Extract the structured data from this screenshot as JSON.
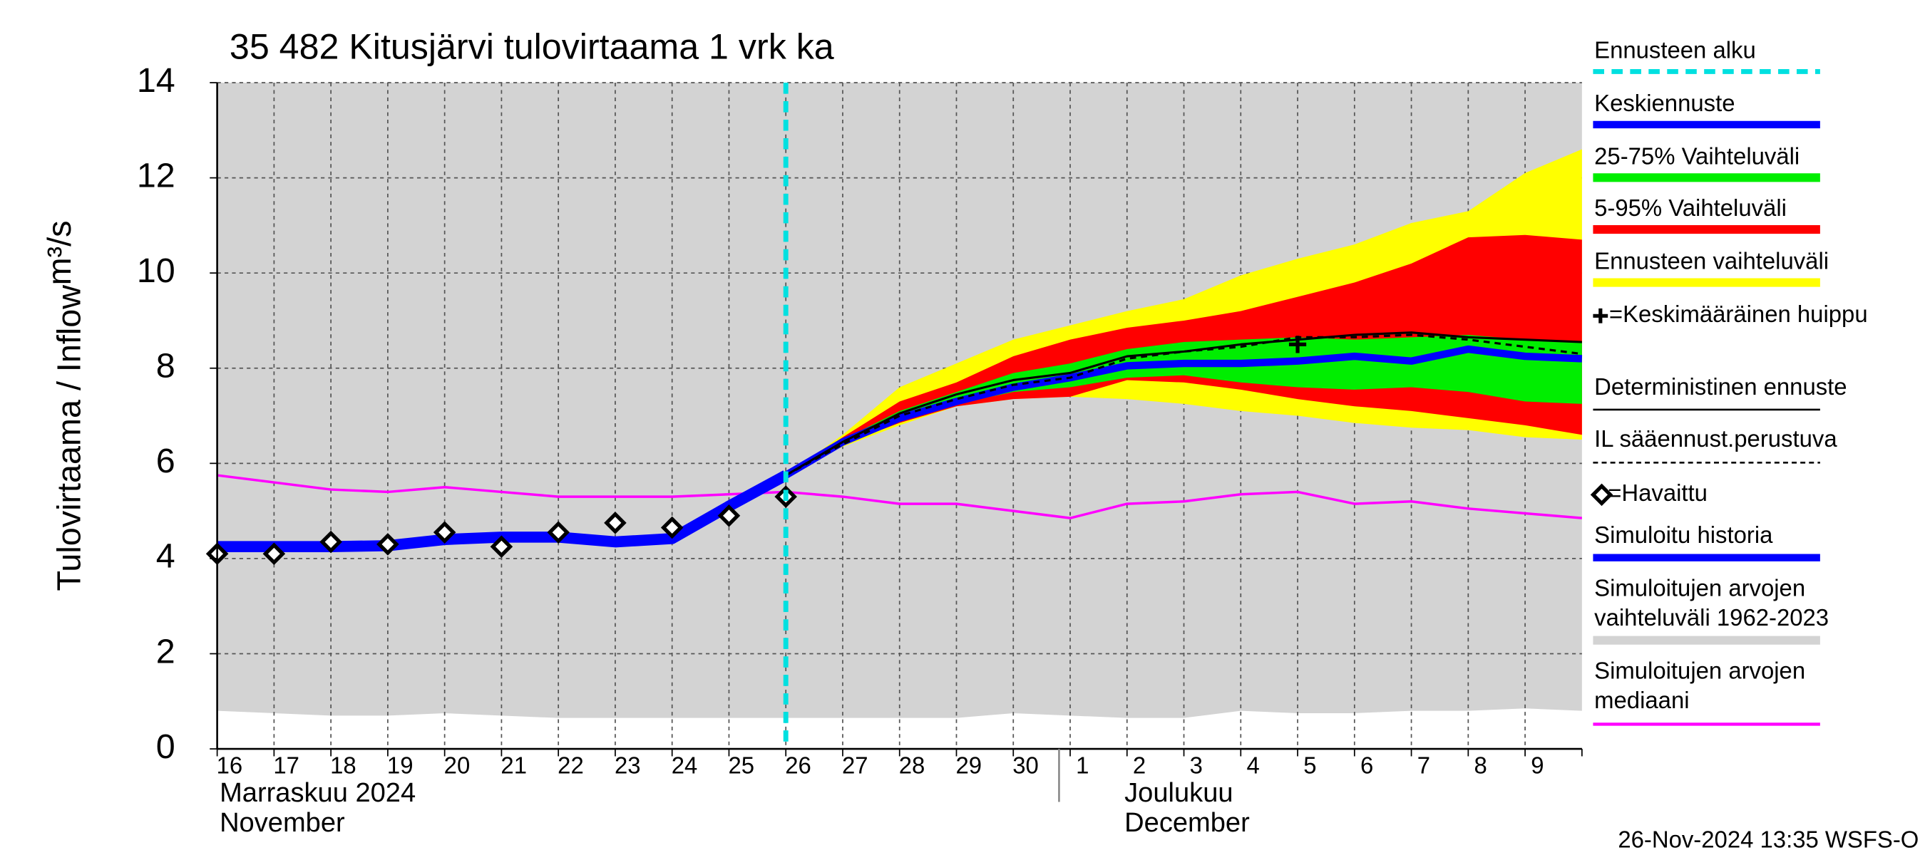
{
  "chart_data": {
    "type": "forecast-band",
    "title": "35 482 Kitusjärvi tulovirtaama 1 vrk ka",
    "ylabel": "Tulovirtaama / Inflow",
    "yunit": "m³/s",
    "categories": [
      "16",
      "17",
      "18",
      "19",
      "20",
      "21",
      "22",
      "23",
      "24",
      "25",
      "26",
      "27",
      "28",
      "29",
      "30",
      "1",
      "2",
      "3",
      "4",
      "5",
      "6",
      "7",
      "8",
      "9",
      null
    ],
    "months": [
      {
        "name": "Marraskuu 2024",
        "name_en": "November",
        "start": "16"
      },
      {
        "name": "Joulukuu",
        "name_en": "December",
        "start": "1"
      }
    ],
    "forecast_start": "26",
    "ylim": [
      0,
      14
    ],
    "yticks": [
      0,
      2,
      4,
      6,
      8,
      10,
      12,
      14
    ],
    "grid": true,
    "footer": "26-Nov-2024 13:35 WSFS-O",
    "series": [
      {
        "kind": "vline",
        "name": "Ennusteen alku",
        "color": "#00e0e0"
      },
      {
        "kind": "line",
        "name": "Keskiennuste",
        "color": "#0000ff",
        "values": [
          null,
          null,
          null,
          null,
          null,
          null,
          null,
          null,
          null,
          null,
          5.75,
          6.45,
          6.95,
          7.3,
          7.6,
          7.8,
          8.05,
          8.1,
          8.1,
          8.15,
          8.25,
          8.15,
          8.4,
          8.25,
          8.2
        ]
      },
      {
        "kind": "band",
        "name": "25-75% Vaihteluväli",
        "color": "#00ee00",
        "low": [
          null,
          null,
          null,
          null,
          null,
          null,
          null,
          null,
          null,
          null,
          5.75,
          6.42,
          6.9,
          7.25,
          7.5,
          7.6,
          7.8,
          7.85,
          7.7,
          7.6,
          7.55,
          7.6,
          7.5,
          7.3,
          7.25
        ],
        "high": [
          null,
          null,
          null,
          null,
          null,
          null,
          null,
          null,
          null,
          null,
          5.75,
          6.5,
          7.1,
          7.5,
          7.9,
          8.1,
          8.4,
          8.55,
          8.6,
          8.65,
          8.6,
          8.65,
          8.7,
          8.6,
          8.55
        ]
      },
      {
        "kind": "band",
        "name": "5-95% Vaihteluväli",
        "color": "#ff0000",
        "low": [
          null,
          null,
          null,
          null,
          null,
          null,
          null,
          null,
          null,
          null,
          5.75,
          6.4,
          6.85,
          7.2,
          7.35,
          7.4,
          7.75,
          7.7,
          7.55,
          7.35,
          7.2,
          7.1,
          6.95,
          6.8,
          6.6
        ],
        "high": [
          null,
          null,
          null,
          null,
          null,
          null,
          null,
          null,
          null,
          null,
          5.75,
          6.55,
          7.3,
          7.7,
          8.25,
          8.6,
          8.85,
          9.0,
          9.2,
          9.5,
          9.8,
          10.2,
          10.75,
          10.8,
          10.7
        ]
      },
      {
        "kind": "band",
        "name": "Ennusteen vaihteluväli",
        "color": "#ffff00",
        "low": [
          null,
          null,
          null,
          null,
          null,
          null,
          null,
          null,
          null,
          null,
          5.75,
          6.35,
          6.8,
          7.2,
          7.35,
          7.4,
          7.35,
          7.25,
          7.1,
          7.0,
          6.85,
          6.75,
          6.7,
          6.55,
          6.5
        ],
        "high": [
          null,
          null,
          null,
          null,
          null,
          null,
          null,
          null,
          null,
          null,
          5.75,
          6.6,
          7.6,
          8.1,
          8.6,
          8.9,
          9.2,
          9.45,
          9.95,
          10.3,
          10.6,
          11.05,
          11.3,
          12.1,
          12.6
        ]
      },
      {
        "kind": "peak",
        "name": "=Keskimääräinen huippu",
        "color": "#000000",
        "values": [
          null,
          null,
          null,
          null,
          null,
          null,
          null,
          null,
          null,
          null,
          null,
          null,
          null,
          null,
          null,
          null,
          null,
          null,
          null,
          8.5,
          null,
          null,
          null,
          null,
          null
        ]
      },
      {
        "kind": "line",
        "name": "Deterministinen ennuste",
        "color": "#000000",
        "values": [
          null,
          null,
          null,
          null,
          null,
          null,
          null,
          null,
          null,
          null,
          5.75,
          6.45,
          7.05,
          7.45,
          7.75,
          7.9,
          8.25,
          8.35,
          8.5,
          8.6,
          8.7,
          8.75,
          8.65,
          8.6,
          8.55
        ]
      },
      {
        "kind": "dashed",
        "name": "IL sääennust.perustuva",
        "color": "#000000",
        "values": [
          null,
          null,
          null,
          null,
          null,
          null,
          null,
          null,
          null,
          null,
          5.75,
          6.4,
          7.0,
          7.35,
          7.65,
          7.8,
          8.2,
          8.35,
          8.45,
          8.65,
          8.65,
          8.7,
          8.6,
          8.45,
          8.3
        ]
      },
      {
        "kind": "markers",
        "name": "=Havaittu",
        "color": "#000000",
        "values": [
          4.1,
          4.1,
          4.35,
          4.3,
          4.55,
          4.25,
          4.55,
          4.75,
          4.65,
          4.9,
          5.3,
          null,
          null,
          null,
          null,
          null,
          null,
          null,
          null,
          null,
          null,
          null,
          null,
          null,
          null
        ]
      },
      {
        "kind": "line",
        "name": "Simuloitu historia",
        "color": "#0000ff",
        "values": [
          4.25,
          4.25,
          4.25,
          4.27,
          4.4,
          4.45,
          4.45,
          4.35,
          4.42,
          5.1,
          5.75,
          null,
          null,
          null,
          null,
          null,
          null,
          null,
          null,
          null,
          null,
          null,
          null,
          null,
          null
        ]
      },
      {
        "kind": "band",
        "name": [
          "Simuloitujen arvojen",
          "vaihteluväli 1962-2023"
        ],
        "color": "#d3d3d3",
        "low": [
          0.8,
          0.75,
          0.7,
          0.7,
          0.75,
          0.7,
          0.65,
          0.65,
          0.65,
          0.65,
          0.65,
          0.65,
          0.65,
          0.65,
          0.75,
          0.7,
          0.65,
          0.65,
          0.8,
          0.75,
          0.75,
          0.8,
          0.8,
          0.85,
          0.8
        ],
        "high": [
          14,
          14,
          14,
          14,
          14,
          14,
          14,
          14,
          14,
          14,
          14,
          14,
          14,
          14,
          14,
          14,
          14,
          14,
          14,
          14,
          14,
          14,
          14,
          14,
          14
        ]
      },
      {
        "kind": "line",
        "name": [
          "Simuloitujen arvojen",
          "mediaani"
        ],
        "color": "#ff00ff",
        "values": [
          5.75,
          5.6,
          5.45,
          5.4,
          5.5,
          5.4,
          5.3,
          5.3,
          5.3,
          5.35,
          5.4,
          5.3,
          5.15,
          5.15,
          5.0,
          4.85,
          5.15,
          5.2,
          5.35,
          5.4,
          5.15,
          5.2,
          5.05,
          4.95,
          4.85
        ]
      }
    ]
  }
}
